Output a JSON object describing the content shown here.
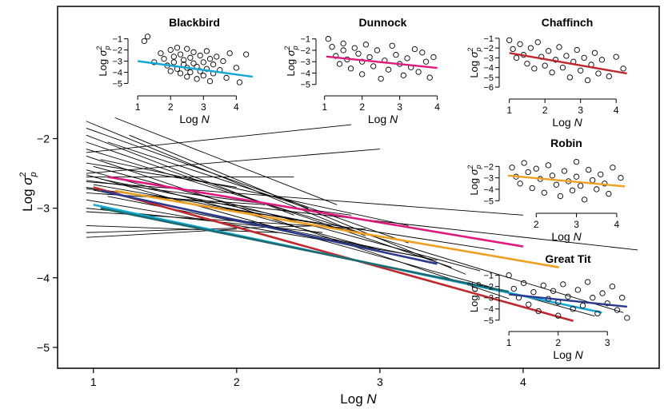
{
  "main": {
    "xlabel_prefix": "Log",
    "xlabel_var": "N",
    "ylabel_prefix": "Log",
    "ylabel_sigma": "σ",
    "ylabel_sup": "2",
    "ylabel_sub": "p",
    "x_ticks": [
      "1",
      "2",
      "3",
      "4"
    ],
    "y_ticks": [
      "−2",
      "−3",
      "−4",
      "−5"
    ]
  },
  "chart_data": [
    {
      "type": "line",
      "panel": "main",
      "xlim": [
        0.75,
        4.95
      ],
      "ylim": [
        -5.3,
        -0.1
      ],
      "x_ticks": [
        1,
        2,
        3,
        4
      ],
      "y_ticks": [
        -2,
        -3,
        -4,
        -5
      ],
      "grid": false,
      "legend": "none",
      "background_lines": [
        [
          [
            0.95,
            -1.75
          ],
          [
            2.9,
            -3.4
          ]
        ],
        [
          [
            0.95,
            -1.85
          ],
          [
            3.2,
            -3.5
          ]
        ],
        [
          [
            0.95,
            -1.95
          ],
          [
            2.4,
            -3.1
          ]
        ],
        [
          [
            0.95,
            -2.05
          ],
          [
            3.5,
            -3.85
          ]
        ],
        [
          [
            0.95,
            -2.15
          ],
          [
            4.7,
            -4.5
          ]
        ],
        [
          [
            0.95,
            -2.25
          ],
          [
            3.9,
            -4.3
          ]
        ],
        [
          [
            0.95,
            -2.35
          ],
          [
            2.0,
            -2.7
          ]
        ],
        [
          [
            0.95,
            -2.45
          ],
          [
            3.0,
            -3.6
          ]
        ],
        [
          [
            0.95,
            -2.52
          ],
          [
            4.5,
            -4.55
          ]
        ],
        [
          [
            0.95,
            -2.6
          ],
          [
            2.8,
            -3.1
          ]
        ],
        [
          [
            0.95,
            -2.7
          ],
          [
            3.8,
            -3.6
          ]
        ],
        [
          [
            0.95,
            -2.78
          ],
          [
            2.2,
            -2.95
          ]
        ],
        [
          [
            0.95,
            -2.88
          ],
          [
            3.3,
            -3.7
          ]
        ],
        [
          [
            0.95,
            -3.0
          ],
          [
            2.6,
            -3.35
          ]
        ],
        [
          [
            0.95,
            -3.25
          ],
          [
            2.3,
            -3.35
          ]
        ],
        [
          [
            0.95,
            -3.42
          ],
          [
            2.0,
            -3.3
          ]
        ],
        [
          [
            1.15,
            -1.7
          ],
          [
            2.7,
            -2.95
          ]
        ],
        [
          [
            1.25,
            -1.95
          ],
          [
            3.6,
            -3.95
          ]
        ],
        [
          [
            1.1,
            -2.05
          ],
          [
            2.5,
            -3.0
          ]
        ],
        [
          [
            0.95,
            -2.2
          ],
          [
            2.8,
            -1.8
          ]
        ],
        [
          [
            0.95,
            -2.5
          ],
          [
            3.0,
            -2.15
          ]
        ],
        [
          [
            0.95,
            -2.55
          ],
          [
            2.4,
            -2.55
          ]
        ],
        [
          [
            0.95,
            -2.62
          ],
          [
            4.0,
            -3.1
          ]
        ],
        [
          [
            0.95,
            -2.72
          ],
          [
            4.8,
            -3.6
          ]
        ],
        [
          [
            0.95,
            -3.05
          ],
          [
            2.9,
            -3.3
          ]
        ],
        [
          [
            0.95,
            -3.35
          ],
          [
            2.6,
            -3.25
          ]
        ],
        [
          [
            1.05,
            -2.3
          ],
          [
            3.2,
            -3.25
          ]
        ],
        [
          [
            1.0,
            -2.4
          ],
          [
            3.7,
            -3.9
          ]
        ],
        [
          [
            1.05,
            -2.58
          ],
          [
            3.1,
            -3.45
          ]
        ],
        [
          [
            1.0,
            -2.66
          ],
          [
            2.5,
            -3.2
          ]
        ],
        [
          [
            1.0,
            -2.74
          ],
          [
            3.4,
            -3.75
          ]
        ],
        [
          [
            1.1,
            -2.83
          ],
          [
            2.9,
            -3.55
          ]
        ]
      ],
      "series": [
        {
          "name": "Dunnock",
          "color": "#e0197d",
          "x": [
            1.1,
            4.0
          ],
          "y": [
            -2.55,
            -3.55
          ]
        },
        {
          "name": "Chaffinch",
          "color": "#c0282d",
          "x": [
            1.0,
            4.35
          ],
          "y": [
            -2.7,
            -4.62
          ]
        },
        {
          "name": "Robin",
          "color": "#f0a020",
          "x": [
            1.15,
            4.25
          ],
          "y": [
            -2.75,
            -3.85
          ]
        },
        {
          "name": "Great Tit",
          "color": "#2b3a8c",
          "x": [
            1.05,
            3.4
          ],
          "y": [
            -2.75,
            -3.8
          ]
        },
        {
          "name": "Blackbird",
          "color": "#12a8d6",
          "x": [
            1.0,
            4.55
          ],
          "y": [
            -2.95,
            -4.5
          ]
        },
        {
          "name": "",
          "color": "#1a6b70",
          "x": [
            1.05,
            3.9
          ],
          "y": [
            -3.0,
            -4.2
          ]
        }
      ]
    },
    {
      "type": "scatter",
      "title": "Blackbird",
      "xlabel": "Log N",
      "xlim": [
        0.85,
        4.6
      ],
      "ylim": [
        -5.4,
        -0.6
      ],
      "x_ticks": [
        1,
        2,
        3,
        4
      ],
      "y_ticks": [
        -1,
        -2,
        -3,
        -4,
        -5
      ],
      "fit_line": {
        "color": "#12a8d6",
        "x": [
          1.0,
          4.5
        ],
        "y": [
          -3.0,
          -4.4
        ]
      },
      "points": [
        [
          1.3,
          -0.8
        ],
        [
          1.2,
          -1.2
        ],
        [
          1.5,
          -3.1
        ],
        [
          1.7,
          -2.3
        ],
        [
          1.8,
          -2.8
        ],
        [
          1.9,
          -3.4
        ],
        [
          2.0,
          -2.0
        ],
        [
          2.0,
          -3.9
        ],
        [
          2.1,
          -2.6
        ],
        [
          2.1,
          -3.1
        ],
        [
          2.2,
          -1.8
        ],
        [
          2.2,
          -3.7
        ],
        [
          2.3,
          -2.4
        ],
        [
          2.3,
          -4.1
        ],
        [
          2.4,
          -2.9
        ],
        [
          2.4,
          -3.3
        ],
        [
          2.5,
          -1.9
        ],
        [
          2.5,
          -4.4
        ],
        [
          2.5,
          -3.6
        ],
        [
          2.6,
          -2.7
        ],
        [
          2.6,
          -4.0
        ],
        [
          2.7,
          -3.2
        ],
        [
          2.7,
          -2.2
        ],
        [
          2.8,
          -4.6
        ],
        [
          2.8,
          -3.5
        ],
        [
          2.9,
          -2.5
        ],
        [
          2.9,
          -3.9
        ],
        [
          3.0,
          -3.1
        ],
        [
          3.0,
          -4.3
        ],
        [
          3.1,
          -2.1
        ],
        [
          3.1,
          -3.7
        ],
        [
          3.2,
          -2.8
        ],
        [
          3.2,
          -4.8
        ],
        [
          3.3,
          -3.3
        ],
        [
          3.3,
          -4.1
        ],
        [
          3.4,
          -2.6
        ],
        [
          3.5,
          -3.8
        ],
        [
          3.6,
          -3.0
        ],
        [
          3.7,
          -4.5
        ],
        [
          3.8,
          -2.3
        ],
        [
          4.0,
          -3.6
        ],
        [
          4.1,
          -4.9
        ],
        [
          4.3,
          -2.4
        ]
      ]
    },
    {
      "type": "scatter",
      "title": "Dunnock",
      "xlabel": "Log N",
      "xlim": [
        0.9,
        4.2
      ],
      "ylim": [
        -5.3,
        -0.6
      ],
      "x_ticks": [
        1,
        2,
        3,
        4
      ],
      "y_ticks": [
        -1,
        -2,
        -3,
        -4,
        -5
      ],
      "fit_line": {
        "color": "#e0197d",
        "x": [
          1.05,
          4.0
        ],
        "y": [
          -2.55,
          -3.55
        ]
      },
      "points": [
        [
          1.1,
          -1.0
        ],
        [
          1.2,
          -1.7
        ],
        [
          1.3,
          -2.5
        ],
        [
          1.4,
          -3.2
        ],
        [
          1.5,
          -1.4
        ],
        [
          1.5,
          -2.0
        ],
        [
          1.6,
          -2.8
        ],
        [
          1.7,
          -3.6
        ],
        [
          1.8,
          -1.8
        ],
        [
          1.9,
          -2.3
        ],
        [
          2.0,
          -3.0
        ],
        [
          2.0,
          -4.1
        ],
        [
          2.1,
          -1.5
        ],
        [
          2.2,
          -2.6
        ],
        [
          2.3,
          -3.4
        ],
        [
          2.4,
          -2.0
        ],
        [
          2.5,
          -4.5
        ],
        [
          2.6,
          -2.9
        ],
        [
          2.7,
          -3.7
        ],
        [
          2.8,
          -1.6
        ],
        [
          2.9,
          -2.4
        ],
        [
          3.0,
          -3.2
        ],
        [
          3.1,
          -4.2
        ],
        [
          3.2,
          -2.7
        ],
        [
          3.3,
          -3.5
        ],
        [
          3.4,
          -1.9
        ],
        [
          3.5,
          -3.9
        ],
        [
          3.6,
          -2.2
        ],
        [
          3.7,
          -3.0
        ],
        [
          3.8,
          -4.4
        ],
        [
          3.9,
          -2.6
        ]
      ]
    },
    {
      "type": "scatter",
      "title": "Chaffinch",
      "xlabel": "Log N",
      "xlim": [
        0.85,
        4.4
      ],
      "ylim": [
        -6.4,
        -0.6
      ],
      "x_ticks": [
        1,
        2,
        3,
        4
      ],
      "y_ticks": [
        -1,
        -2,
        -3,
        -4,
        -5,
        -6
      ],
      "fit_line": {
        "color": "#c0282d",
        "x": [
          1.0,
          4.3
        ],
        "y": [
          -2.5,
          -4.6
        ]
      },
      "points": [
        [
          1.0,
          -1.2
        ],
        [
          1.1,
          -2.1
        ],
        [
          1.2,
          -3.0
        ],
        [
          1.3,
          -1.6
        ],
        [
          1.4,
          -2.7
        ],
        [
          1.5,
          -3.6
        ],
        [
          1.6,
          -2.0
        ],
        [
          1.7,
          -4.1
        ],
        [
          1.8,
          -1.4
        ],
        [
          1.9,
          -2.9
        ],
        [
          2.0,
          -3.8
        ],
        [
          2.1,
          -2.3
        ],
        [
          2.2,
          -4.5
        ],
        [
          2.3,
          -3.2
        ],
        [
          2.4,
          -1.9
        ],
        [
          2.5,
          -4.0
        ],
        [
          2.6,
          -2.8
        ],
        [
          2.7,
          -5.0
        ],
        [
          2.8,
          -3.4
        ],
        [
          2.9,
          -2.2
        ],
        [
          3.0,
          -4.3
        ],
        [
          3.1,
          -3.0
        ],
        [
          3.2,
          -5.3
        ],
        [
          3.3,
          -3.7
        ],
        [
          3.4,
          -2.5
        ],
        [
          3.5,
          -4.6
        ],
        [
          3.6,
          -3.2
        ],
        [
          3.8,
          -4.9
        ],
        [
          4.0,
          -2.9
        ],
        [
          4.2,
          -4.1
        ]
      ]
    },
    {
      "type": "scatter",
      "title": "Robin",
      "xlabel": "Log N",
      "xlim": [
        1.2,
        4.3
      ],
      "ylim": [
        -5.4,
        -1.0
      ],
      "x_ticks": [
        2,
        3,
        4
      ],
      "y_ticks": [
        -2,
        -3,
        -4,
        -5
      ],
      "fit_line": {
        "color": "#f0a020",
        "x": [
          1.3,
          4.2
        ],
        "y": [
          -2.8,
          -3.75
        ]
      },
      "points": [
        [
          1.4,
          -2.1
        ],
        [
          1.5,
          -2.9
        ],
        [
          1.6,
          -3.5
        ],
        [
          1.7,
          -1.7
        ],
        [
          1.8,
          -2.5
        ],
        [
          1.9,
          -3.9
        ],
        [
          2.0,
          -2.2
        ],
        [
          2.1,
          -3.1
        ],
        [
          2.2,
          -4.3
        ],
        [
          2.3,
          -1.9
        ],
        [
          2.4,
          -2.8
        ],
        [
          2.5,
          -3.6
        ],
        [
          2.6,
          -4.6
        ],
        [
          2.7,
          -2.4
        ],
        [
          2.8,
          -3.3
        ],
        [
          2.9,
          -4.1
        ],
        [
          3.0,
          -1.6
        ],
        [
          3.0,
          -2.9
        ],
        [
          3.1,
          -3.7
        ],
        [
          3.2,
          -4.9
        ],
        [
          3.3,
          -2.3
        ],
        [
          3.4,
          -3.2
        ],
        [
          3.5,
          -4.0
        ],
        [
          3.6,
          -2.7
        ],
        [
          3.7,
          -3.5
        ],
        [
          3.8,
          -4.4
        ],
        [
          3.9,
          -2.1
        ],
        [
          4.1,
          -3.0
        ]
      ]
    },
    {
      "type": "scatter",
      "title": "Great Tit",
      "xlabel": "Log N",
      "xlim": [
        0.9,
        3.5
      ],
      "ylim": [
        -5.3,
        -0.6
      ],
      "x_ticks": [
        1,
        2,
        3
      ],
      "y_ticks": [
        -1,
        -2,
        -3,
        -4,
        -5
      ],
      "fit_line": {
        "color": "#2b3a8c",
        "x": [
          1.0,
          3.4
        ],
        "y": [
          -2.7,
          -3.8
        ]
      },
      "points": [
        [
          1.0,
          -1.0
        ],
        [
          1.1,
          -2.2
        ],
        [
          1.2,
          -3.0
        ],
        [
          1.3,
          -1.7
        ],
        [
          1.4,
          -3.6
        ],
        [
          1.5,
          -2.5
        ],
        [
          1.6,
          -4.2
        ],
        [
          1.7,
          -1.9
        ],
        [
          1.8,
          -3.1
        ],
        [
          1.9,
          -2.4
        ],
        [
          2.0,
          -4.6
        ],
        [
          2.0,
          -3.4
        ],
        [
          2.1,
          -1.8
        ],
        [
          2.2,
          -2.9
        ],
        [
          2.3,
          -4.0
        ],
        [
          2.4,
          -2.3
        ],
        [
          2.5,
          -3.7
        ],
        [
          2.6,
          -1.6
        ],
        [
          2.7,
          -3.0
        ],
        [
          2.8,
          -4.4
        ],
        [
          2.9,
          -2.6
        ],
        [
          3.0,
          -3.5
        ],
        [
          3.1,
          -2.0
        ],
        [
          3.2,
          -4.1
        ],
        [
          3.3,
          -3.0
        ],
        [
          3.4,
          -4.8
        ]
      ]
    }
  ]
}
